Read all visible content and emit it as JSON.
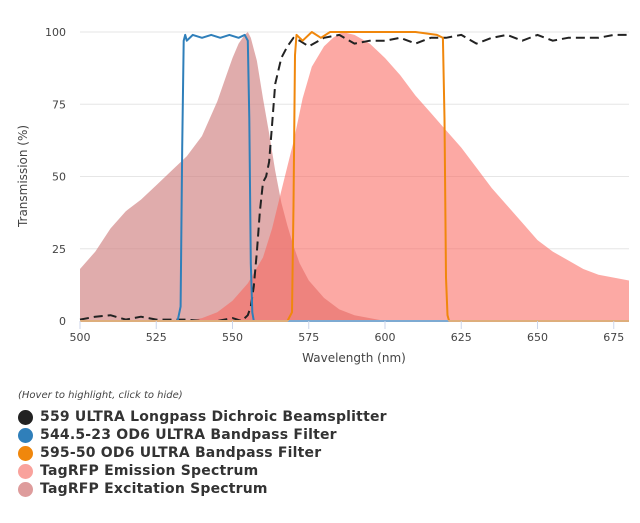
{
  "chart_data": {
    "type": "area",
    "xlabel": "Wavelength (nm)",
    "ylabel": "Transmission (%)",
    "xlim": [
      500,
      680
    ],
    "ylim": [
      0,
      100
    ],
    "x_ticks": [
      500,
      525,
      550,
      575,
      600,
      625,
      650,
      675
    ],
    "y_ticks": [
      0,
      25,
      50,
      75,
      100
    ],
    "legend_hint": "(Hover to highlight, click to hide)",
    "series": [
      {
        "name": "TagRFP Excitation Spectrum",
        "kind": "area",
        "color": "#cf7f80",
        "fill_opacity": 0.65,
        "x": [
          500,
          505,
          510,
          515,
          520,
          525,
          530,
          535,
          540,
          545,
          548,
          550,
          552,
          554,
          555,
          556,
          558,
          560,
          562,
          564,
          566,
          568,
          570,
          572,
          575,
          580,
          585,
          590,
          595,
          600
        ],
        "y": [
          18,
          24,
          32,
          38,
          42,
          47,
          52,
          57,
          64,
          76,
          85,
          91,
          96,
          99,
          100,
          98,
          90,
          77,
          65,
          52,
          41,
          33,
          26,
          20,
          14,
          8,
          4,
          2,
          1,
          0
        ]
      },
      {
        "name": "TagRFP Emission Spectrum",
        "kind": "area",
        "color": "#f9635a",
        "fill_opacity": 0.55,
        "x": [
          535,
          540,
          545,
          550,
          555,
          560,
          563,
          566,
          570,
          573,
          576,
          580,
          583,
          586,
          590,
          595,
          600,
          605,
          610,
          615,
          620,
          625,
          630,
          635,
          640,
          645,
          650,
          655,
          660,
          665,
          670,
          675,
          680
        ],
        "y": [
          0,
          1,
          3,
          7,
          13,
          22,
          32,
          45,
          62,
          77,
          88,
          95,
          98,
          100,
          99,
          96,
          91,
          85,
          78,
          72,
          66,
          60,
          53,
          46,
          40,
          34,
          28,
          24,
          21,
          18,
          16,
          15,
          14
        ]
      },
      {
        "name": "559 ULTRA Longpass Dichroic Beamsplitter",
        "kind": "line",
        "dashed": true,
        "color": "#222222",
        "x": [
          500,
          505,
          510,
          515,
          520,
          525,
          530,
          535,
          540,
          545,
          550,
          553,
          555,
          556,
          557,
          558,
          559,
          560,
          561,
          562,
          563,
          564,
          566,
          568,
          570,
          572,
          575,
          580,
          585,
          590,
          595,
          600,
          605,
          610,
          615,
          620,
          625,
          630,
          635,
          640,
          645,
          650,
          655,
          660,
          665,
          670,
          675,
          680
        ],
        "y": [
          0.5,
          1.5,
          2,
          0.5,
          1.5,
          0.5,
          0.5,
          0.5,
          0,
          0,
          1,
          0,
          2,
          5,
          12,
          24,
          38,
          48,
          50,
          55,
          68,
          82,
          91,
          95,
          98,
          97,
          95,
          98,
          99,
          96,
          97,
          97,
          98,
          96,
          98,
          98,
          99,
          96,
          98,
          99,
          97,
          99,
          97,
          98,
          98,
          98,
          99,
          99
        ]
      },
      {
        "name": "544.5-23 OD6 ULTRA Bandpass Filter",
        "kind": "line",
        "color": "#2f7fba",
        "x": [
          500,
          530,
          532,
          533,
          533.5,
          534,
          534.5,
          535,
          537,
          540,
          543,
          546,
          549,
          552,
          554,
          555,
          555.5,
          556,
          556.5,
          557,
          559,
          680
        ],
        "y": [
          0,
          0,
          0,
          5,
          60,
          97,
          99,
          97,
          99,
          98,
          99,
          98,
          99,
          98,
          99,
          97,
          70,
          20,
          3,
          0,
          0,
          0
        ]
      },
      {
        "name": "595-50 OD6 ULTRA Bandpass Filter",
        "kind": "line",
        "color": "#f0870c",
        "x": [
          500,
          568,
          569.5,
          570,
          570.5,
          571,
          573,
          576,
          579,
          582,
          590,
          600,
          610,
          617,
          619,
          619.5,
          620,
          620.5,
          621,
          623,
          680
        ],
        "y": [
          0,
          0,
          3,
          40,
          92,
          99,
          97,
          100,
          98,
          100,
          100,
          100,
          100,
          99,
          98,
          70,
          15,
          2,
          0,
          0,
          0
        ]
      }
    ],
    "legend_order": [
      "559 ULTRA Longpass Dichroic Beamsplitter",
      "544.5-23 OD6 ULTRA Bandpass Filter",
      "595-50 OD6 ULTRA Bandpass Filter",
      "TagRFP Emission Spectrum",
      "TagRFP Excitation Spectrum"
    ],
    "legend_colors": [
      "#222222",
      "#2f7fba",
      "#f0870c",
      "#f9a29c",
      "#de9c9c"
    ]
  }
}
